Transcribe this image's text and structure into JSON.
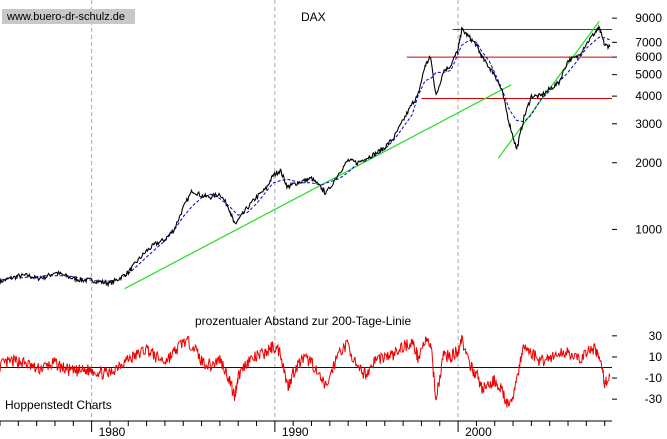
{
  "watermark": "www.buero-dr-schulz.de",
  "footer_left": "Hoppenstedt Charts",
  "colors": {
    "price": "#000000",
    "trend_up": "#22dd22",
    "resistance": "#d00000",
    "oscillator": "#ee0000",
    "zero_line": "#0000aa",
    "moving_avg": "#0000cc",
    "grid": "#aaaaaa"
  },
  "chart_data": [
    {
      "type": "line",
      "title": "DAX",
      "scale": "log",
      "ylim": [
        480,
        10000
      ],
      "xlim": [
        1975.0,
        2008.4
      ],
      "y_ticks": [
        9000,
        7000,
        6000,
        5000,
        4000,
        3000,
        2000,
        1000
      ],
      "x_ticks": [
        "1980",
        "1990",
        "2000"
      ],
      "x_tick_values": [
        1980,
        1990,
        2000
      ],
      "grid": "vertical dashed at decades",
      "series": [
        {
          "role": "price",
          "x": [
            1975.0,
            1975.5,
            1976.0,
            1976.5,
            1977.0,
            1977.5,
            1978.0,
            1978.5,
            1979.0,
            1979.5,
            1980.0,
            1980.5,
            1981.0,
            1981.5,
            1982.0,
            1982.5,
            1983.0,
            1983.5,
            1984.0,
            1984.5,
            1985.0,
            1985.5,
            1986.0,
            1986.5,
            1987.0,
            1987.5,
            1987.8,
            1988.0,
            1988.5,
            1989.0,
            1989.5,
            1989.9,
            1990.3,
            1990.7,
            1991.0,
            1991.5,
            1992.0,
            1992.5,
            1992.8,
            1993.5,
            1994.0,
            1994.5,
            1995.0,
            1995.5,
            1996.0,
            1996.5,
            1997.0,
            1997.5,
            1997.8,
            1998.2,
            1998.5,
            1998.8,
            1999.2,
            1999.6,
            2000.0,
            2000.2,
            2000.6,
            2001.0,
            2001.3,
            2001.7,
            2002.0,
            2002.4,
            2002.8,
            2003.2,
            2003.6,
            2004.0,
            2004.5,
            2005.0,
            2005.5,
            2006.0,
            2006.5,
            2007.0,
            2007.5,
            2007.7,
            2008.0,
            2008.3
          ],
          "y": [
            580,
            600,
            615,
            620,
            600,
            610,
            640,
            620,
            600,
            590,
            590,
            580,
            570,
            600,
            640,
            720,
            800,
            860,
            900,
            1000,
            1250,
            1500,
            1420,
            1400,
            1450,
            1250,
            1050,
            1100,
            1250,
            1400,
            1520,
            1750,
            1850,
            1550,
            1600,
            1650,
            1700,
            1550,
            1450,
            1800,
            2050,
            2000,
            2100,
            2200,
            2350,
            2600,
            3100,
            3700,
            4000,
            5500,
            6000,
            4000,
            5200,
            5500,
            6500,
            8000,
            7400,
            6800,
            6000,
            5400,
            5000,
            4200,
            3000,
            2300,
            3200,
            4000,
            4000,
            4300,
            4600,
            5800,
            6000,
            6900,
            7800,
            8100,
            6800,
            6700
          ]
        },
        {
          "role": "trend_up_long",
          "x": [
            1981.8,
            2002.9
          ],
          "y": [
            540,
            4500
          ]
        },
        {
          "role": "trend_up_recent",
          "x": [
            2002.2,
            2007.7
          ],
          "y": [
            2100,
            8700
          ]
        },
        {
          "role": "support_resistance",
          "levels": [
            {
              "y": 8000,
              "x": [
                1999.7,
                2008.4
              ]
            },
            {
              "y": 6000,
              "x": [
                1997.2,
                2008.4
              ]
            },
            {
              "y": 3900,
              "x": [
                1998.0,
                2008.4
              ]
            }
          ]
        }
      ]
    },
    {
      "type": "line",
      "title": "prozentualer Abstand zur 200-Tage-Linie",
      "ylim": [
        -45,
        45
      ],
      "y_ticks": [
        30,
        10,
        -10,
        -30
      ],
      "zero_line": 0,
      "series": [
        {
          "role": "distance_percent",
          "x": [
            1975.0,
            1975.5,
            1976.0,
            1976.5,
            1977.0,
            1977.5,
            1978.0,
            1978.5,
            1979.0,
            1979.5,
            1980.0,
            1980.5,
            1981.0,
            1981.5,
            1982.0,
            1982.5,
            1983.0,
            1983.5,
            1984.0,
            1984.5,
            1985.0,
            1985.5,
            1986.0,
            1986.5,
            1987.0,
            1987.5,
            1987.8,
            1988.0,
            1988.5,
            1989.0,
            1989.5,
            1989.9,
            1990.3,
            1990.7,
            1991.0,
            1991.5,
            1992.0,
            1992.5,
            1992.8,
            1993.5,
            1994.0,
            1994.5,
            1995.0,
            1995.5,
            1996.0,
            1996.5,
            1997.0,
            1997.5,
            1997.8,
            1998.2,
            1998.5,
            1998.8,
            1999.2,
            1999.6,
            2000.0,
            2000.2,
            2000.6,
            2001.0,
            2001.3,
            2001.7,
            2002.0,
            2002.4,
            2002.8,
            2003.2,
            2003.6,
            2004.0,
            2004.5,
            2005.0,
            2005.5,
            2006.0,
            2006.5,
            2007.0,
            2007.5,
            2007.7,
            2008.0,
            2008.3
          ],
          "y": [
            2,
            5,
            6,
            3,
            -2,
            1,
            4,
            -1,
            -4,
            -3,
            -2,
            -5,
            -6,
            3,
            8,
            12,
            18,
            10,
            6,
            14,
            25,
            22,
            6,
            2,
            8,
            -10,
            -28,
            -8,
            6,
            10,
            14,
            20,
            15,
            -18,
            -5,
            8,
            6,
            -12,
            -18,
            15,
            22,
            -2,
            -6,
            8,
            10,
            12,
            20,
            24,
            10,
            25,
            22,
            -30,
            12,
            10,
            16,
            28,
            2,
            -6,
            -20,
            -18,
            -12,
            -22,
            -40,
            -10,
            20,
            14,
            6,
            10,
            12,
            16,
            6,
            14,
            18,
            8,
            -14,
            -10
          ]
        }
      ]
    }
  ]
}
